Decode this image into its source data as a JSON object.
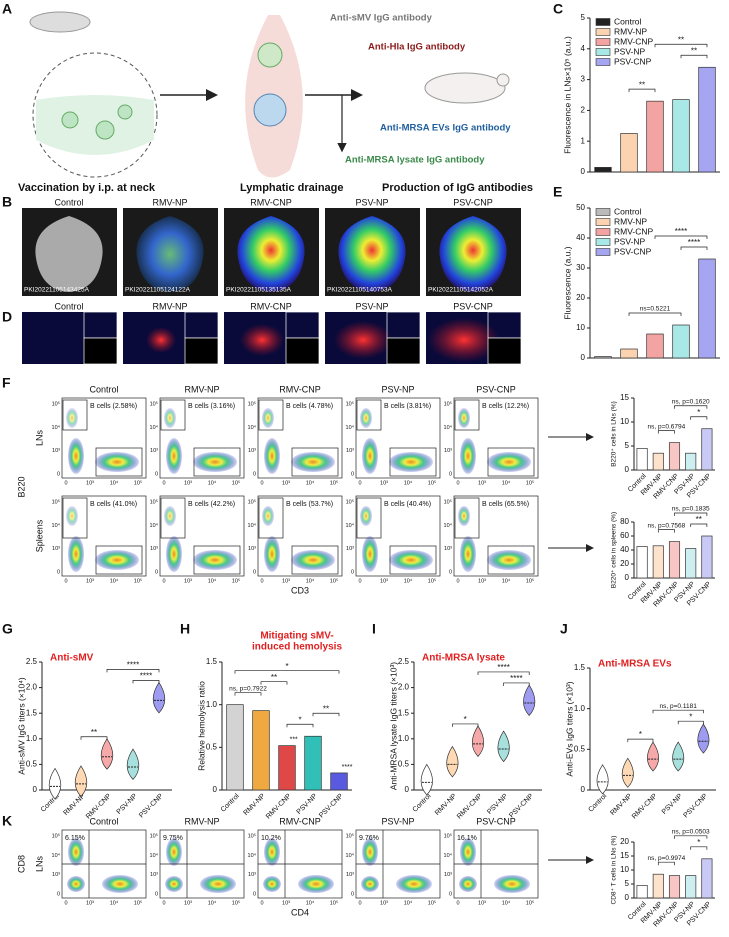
{
  "panel_labels": [
    "A",
    "B",
    "C",
    "D",
    "E",
    "F",
    "G",
    "H",
    "I",
    "J",
    "K"
  ],
  "panel_A": {
    "antibodies": [
      "Anti-sMV IgG antibody",
      "Anti-Hla IgG antibody",
      "Anti-MRSA EVs IgG antibody",
      "Anti-MRSA lysate IgG antibody"
    ],
    "steps": [
      "Vaccination by i.p. at neck",
      "Lymphatic drainage",
      "Production of IgG antibodies"
    ]
  },
  "panel_B": {
    "groups": [
      "Control",
      "RMV-NP",
      "RMV-CNP",
      "PSV-NP",
      "PSV-CNP"
    ],
    "image_ids": [
      "PKI20221105143425A",
      "PKI20221105124122A",
      "PKI20221105135135A",
      "PKI20221105140753A",
      "PKI20221105142052A"
    ]
  },
  "panel_D": {
    "groups": [
      "Control",
      "RMV-NP",
      "RMV-CNP",
      "PSV-NP",
      "PSV-CNP"
    ]
  },
  "flow_F": {
    "groups": [
      "Control",
      "RMV-NP",
      "RMV-CNP",
      "PSV-NP",
      "PSV-CNP"
    ],
    "rows": [
      {
        "name": "LNs",
        "gates": [
          "B cells (2.58%)",
          "B cells (3.16%)",
          "B cells (4.78%)",
          "B cells (3.81%)",
          "B cells (12.2%)"
        ]
      },
      {
        "name": "Spleens",
        "gates": [
          "B cells (41.0%)",
          "B cells (42.2%)",
          "B cells (53.7%)",
          "B cells (40.4%)",
          "B cells (65.5%)"
        ]
      }
    ],
    "ylabel": "B220",
    "xlabel": "CD3"
  },
  "flow_K": {
    "groups": [
      "Control",
      "RMV-NP",
      "RMV-CNP",
      "PSV-NP",
      "PSV-CNP"
    ],
    "rows": [
      {
        "name": "LNs",
        "gates": [
          "6.15%",
          "9.75%",
          "10.2%",
          "9.76%",
          "16.1%"
        ]
      }
    ],
    "ylabel": "CD8",
    "xlabel": "CD4"
  },
  "flow_ticks": [
    "0",
    "10³",
    "10⁴",
    "10⁵"
  ],
  "chart_data": [
    {
      "type": "bar",
      "ylabel": "Fluorescence in LNs×10⁵ (a.u.)",
      "categories": [
        "Control",
        "RMV-NP",
        "RMV-CNP",
        "PSV-NP",
        "PSV-CNP"
      ],
      "values": [
        0.15,
        1.25,
        2.3,
        2.35,
        3.4
      ],
      "colors": [
        "#222222",
        "#fbd3b0",
        "#f4a3a3",
        "#a8e8e6",
        "#a5a5f2"
      ],
      "ylim": [
        0,
        5
      ],
      "yticks": [
        0,
        1,
        2,
        3,
        4,
        5
      ],
      "legend": true,
      "brackets": [
        {
          "label": "**",
          "pair": [
            "RMV-NP",
            "RMV-CNP"
          ]
        },
        {
          "label": "**",
          "pair": [
            "PSV-NP",
            "PSV-CNP"
          ]
        },
        {
          "label": "**",
          "pair": [
            "RMV-CNP",
            "PSV-CNP"
          ]
        }
      ]
    },
    {
      "type": "bar",
      "ylabel": "Fluorescence (a.u.)",
      "categories": [
        "Control",
        "RMV-NP",
        "RMV-CNP",
        "PSV-NP",
        "PSV-CNP"
      ],
      "values": [
        0.5,
        3,
        8,
        11,
        33
      ],
      "colors": [
        "#bbbbbb",
        "#fbd3b0",
        "#f4a3a3",
        "#a8e8e6",
        "#a5a5f2"
      ],
      "ylim": [
        0,
        50
      ],
      "yticks": [
        0,
        10,
        20,
        30,
        40,
        50
      ],
      "legend": true,
      "brackets": [
        {
          "label": "ns=0.5221",
          "pair": [
            "RMV-NP",
            "PSV-NP"
          ]
        },
        {
          "label": "****",
          "pair": [
            "PSV-NP",
            "PSV-CNP"
          ]
        },
        {
          "label": "****",
          "pair": [
            "RMV-CNP",
            "PSV-CNP"
          ]
        }
      ]
    },
    {
      "type": "bar",
      "ylabel": "B220⁺ cells in LNs (%)",
      "categories": [
        "Control",
        "RMV-NP",
        "RMV-CNP",
        "PSV-NP",
        "PSV-CNP"
      ],
      "values": [
        4.5,
        3.5,
        5.7,
        3.5,
        8.6
      ],
      "colors": [
        "#ffffff",
        "#fde3cc",
        "#f9c6c6",
        "#cdeff0",
        "#c9c9f5"
      ],
      "ylim": [
        0,
        15
      ],
      "yticks": [
        0,
        5,
        10,
        15
      ],
      "brackets": [
        {
          "label": "ns, p=0.6794",
          "pair": [
            "RMV-NP",
            "RMV-CNP"
          ]
        },
        {
          "label": "*",
          "pair": [
            "PSV-NP",
            "PSV-CNP"
          ]
        },
        {
          "label": "ns, p=0.1620",
          "pair": [
            "RMV-CNP",
            "PSV-CNP"
          ]
        }
      ]
    },
    {
      "type": "bar",
      "ylabel": "B220⁺ cells in spleens (%)",
      "categories": [
        "Control",
        "RMV-NP",
        "RMV-CNP",
        "PSV-NP",
        "PSV-CNP"
      ],
      "values": [
        45,
        46,
        52,
        42,
        60
      ],
      "colors": [
        "#ffffff",
        "#fde3cc",
        "#f9c6c6",
        "#cdeff0",
        "#c9c9f5"
      ],
      "ylim": [
        0,
        80
      ],
      "yticks": [
        0,
        20,
        40,
        60,
        80
      ],
      "brackets": [
        {
          "label": "ns, p=0.7568",
          "pair": [
            "RMV-NP",
            "RMV-CNP"
          ]
        },
        {
          "label": "**",
          "pair": [
            "PSV-NP",
            "PSV-CNP"
          ]
        },
        {
          "label": "ns, p=0.1835",
          "pair": [
            "RMV-CNP",
            "PSV-CNP"
          ]
        }
      ]
    },
    {
      "type": "violin",
      "title": [
        "Anti-sMV"
      ],
      "ylabel": "Anti-sMV IgG titers (×10⁴)",
      "categories": [
        "Control",
        "RMV-NP",
        "RMV-CNP",
        "PSV-NP",
        "PSV-CNP"
      ],
      "values": [
        0.07,
        0.12,
        0.65,
        0.45,
        1.75
      ],
      "colors": [
        "#ffffff",
        "#ffd9b3",
        "#f7a9a9",
        "#a8e0de",
        "#9d9cf0"
      ],
      "ylim": [
        0,
        2.5
      ],
      "yticks": [
        0,
        0.5,
        {
          "value": 1,
          "label": "1.0"
        },
        1.5,
        {
          "value": 2,
          "label": "2.0"
        },
        2.5
      ],
      "brackets": [
        {
          "label": "**",
          "pair": [
            "RMV-NP",
            "RMV-CNP"
          ]
        },
        {
          "label": "****",
          "pair": [
            "PSV-NP",
            "PSV-CNP"
          ]
        },
        {
          "label": "****",
          "pair": [
            "RMV-CNP",
            "PSV-CNP"
          ]
        }
      ]
    },
    {
      "type": "bar",
      "title": [
        "Mitigating sMV-",
        "induced hemolysis"
      ],
      "ylabel": "Relative hemolysis ratio",
      "categories": [
        "Control",
        "RMV-NP",
        "RMV-CNP",
        "PSV-NP",
        "PSV-CNP"
      ],
      "values": [
        1.0,
        0.93,
        0.52,
        0.63,
        0.2
      ],
      "colors": [
        "#d3d3d3",
        "#f0a840",
        "#e04848",
        "#30c0b8",
        "#5a5ae0"
      ],
      "ylim": [
        0,
        1.5
      ],
      "yticks": [
        0,
        0.5,
        {
          "value": 1,
          "label": "1.0"
        },
        1.5
      ],
      "value_notes": [
        {
          "category": "RMV-CNP",
          "label": "***"
        },
        {
          "category": "PSV-CNP",
          "label": "****"
        }
      ],
      "brackets": [
        {
          "label": "ns, p=0.7922",
          "pair": [
            "Control",
            "RMV-NP"
          ]
        },
        {
          "label": "*",
          "pair": [
            "RMV-CNP",
            "PSV-NP"
          ]
        },
        {
          "label": "**",
          "pair": [
            "PSV-NP",
            "PSV-CNP"
          ]
        },
        {
          "label": "**",
          "pair": [
            "RMV-NP",
            "RMV-CNP"
          ]
        },
        {
          "label": "*",
          "pair": [
            "Control",
            "PSV-CNP"
          ]
        }
      ]
    },
    {
      "type": "violin",
      "title": [
        "Anti-MRSA lysate"
      ],
      "ylabel": "Anti-MRSA lysate IgG titers (×10³)",
      "categories": [
        "Control",
        "RMV-NP",
        "RMV-CNP",
        "PSV-NP",
        "PSV-CNP"
      ],
      "values": [
        0.15,
        0.5,
        0.9,
        0.8,
        1.7
      ],
      "colors": [
        "#ffffff",
        "#ffd9b3",
        "#f7a9a9",
        "#a8e0de",
        "#9d9cf0"
      ],
      "ylim": [
        0,
        2.5
      ],
      "yticks": [
        0,
        0.5,
        {
          "value": 1,
          "label": "1.0"
        },
        1.5,
        {
          "value": 2,
          "label": "2.0"
        },
        2.5
      ],
      "brackets": [
        {
          "label": "*",
          "pair": [
            "RMV-NP",
            "RMV-CNP"
          ]
        },
        {
          "label": "****",
          "pair": [
            "PSV-NP",
            "PSV-CNP"
          ]
        },
        {
          "label": "****",
          "pair": [
            "RMV-CNP",
            "PSV-CNP"
          ]
        }
      ]
    },
    {
      "type": "violin",
      "title": [
        "Anti-MRSA EVs"
      ],
      "ylabel": "Anti-EVs IgG titers (×10³)",
      "categories": [
        "Control",
        "RMV-NP",
        "RMV-CNP",
        "PSV-NP",
        "PSV-CNP"
      ],
      "values": [
        0.1,
        0.18,
        0.38,
        0.38,
        0.6
      ],
      "colors": [
        "#ffffff",
        "#ffd9b3",
        "#f7a9a9",
        "#a8e0de",
        "#9d9cf0"
      ],
      "ylim": [
        0,
        1.5
      ],
      "yticks": [
        0,
        0.5,
        {
          "value": 1,
          "label": "1.0"
        },
        1.5
      ],
      "brackets": [
        {
          "label": "*",
          "pair": [
            "RMV-NP",
            "RMV-CNP"
          ]
        },
        {
          "label": "*",
          "pair": [
            "PSV-NP",
            "PSV-CNP"
          ]
        },
        {
          "label": "ns, p=0.1181",
          "pair": [
            "RMV-CNP",
            "PSV-CNP"
          ]
        }
      ]
    },
    {
      "type": "bar",
      "ylabel": "CD8⁺ T cells in LNs (%)",
      "categories": [
        "Control",
        "RMV-NP",
        "RMV-CNP",
        "PSV-NP",
        "PSV-CNP"
      ],
      "values": [
        4.5,
        8.5,
        8,
        8,
        14
      ],
      "colors": [
        "#ffffff",
        "#fde3cc",
        "#f9c6c6",
        "#cdeff0",
        "#c9c9f5"
      ],
      "ylim": [
        0,
        20
      ],
      "yticks": [
        0,
        5,
        10,
        15,
        20
      ],
      "brackets": [
        {
          "label": "ns, p=0.9974",
          "pair": [
            "RMV-NP",
            "RMV-CNP"
          ]
        },
        {
          "label": "*",
          "pair": [
            "PSV-NP",
            "PSV-CNP"
          ]
        },
        {
          "label": "ns, p=0.0503",
          "pair": [
            "RMV-CNP",
            "PSV-CNP"
          ]
        }
      ]
    }
  ]
}
